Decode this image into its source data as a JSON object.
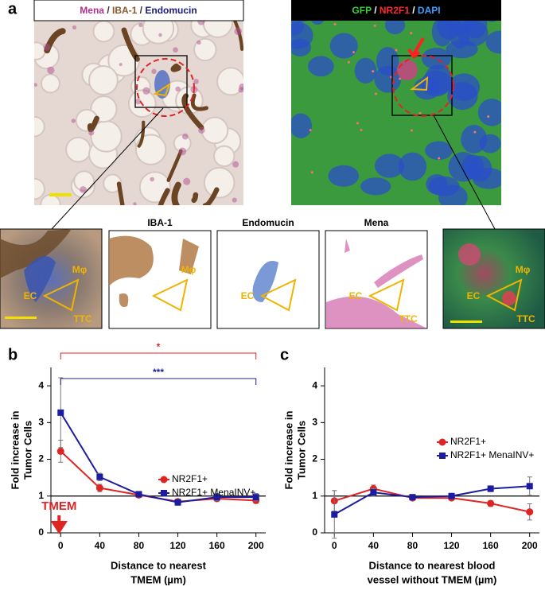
{
  "panel_labels": [
    "a",
    "b",
    "c"
  ],
  "captions": {
    "left": [
      {
        "text": "Mena",
        "color": "#b0308f"
      },
      {
        "text": " / ",
        "color": "#333333"
      },
      {
        "text": "IBA-1",
        "color": "#8b5a2b"
      },
      {
        "text": " / ",
        "color": "#333333"
      },
      {
        "text": "Endomucin",
        "color": "#1a1a7a"
      }
    ],
    "right": [
      {
        "text": "GFP",
        "color": "#3ad13a"
      },
      {
        "text": " / ",
        "color": "#ffffff"
      },
      {
        "text": "NR2F1",
        "color": "#ff2a2a"
      },
      {
        "text": " / ",
        "color": "#ffffff"
      },
      {
        "text": "DAPI",
        "color": "#3aa0ff"
      }
    ]
  },
  "insets": {
    "titles": [
      "IBA-1",
      "Endomucin",
      "Mena"
    ],
    "labels": {
      "ec": "EC",
      "mphi": "Mφ",
      "ttc": "TTC"
    }
  },
  "chart_data": [
    {
      "type": "line",
      "x": [
        0,
        40,
        80,
        120,
        160,
        200
      ],
      "xlim": [
        -10,
        210
      ],
      "xticks": [
        0,
        40,
        80,
        120,
        160,
        200
      ],
      "ylim": [
        0,
        4.5
      ],
      "yticks": [
        0,
        1,
        2,
        3,
        4
      ],
      "reference_line": 1,
      "x_label": [
        "Distance to nearest",
        "TMEM (µm)"
      ],
      "y_label": [
        "Fold increase in",
        "Tumor Cells"
      ],
      "marker_label": "TMEM",
      "significance": [
        {
          "label": "*",
          "color": "#e02424"
        },
        {
          "label": "***",
          "color": "#1c1ca0"
        }
      ],
      "series": [
        {
          "name": "NR2F1+",
          "color": "#e02424",
          "marker": "circle",
          "values": [
            2.22,
            1.22,
            1.03,
            0.85,
            0.93,
            0.88
          ],
          "errors": [
            0.3,
            0.1,
            0.06,
            0.07,
            0.07,
            0.08
          ]
        },
        {
          "name": "NR2F1+ MenaINV+",
          "color": "#1c1ca0",
          "marker": "square",
          "values": [
            3.27,
            1.52,
            1.05,
            0.83,
            0.97,
            0.97
          ],
          "errors": [
            0.95,
            0.1,
            0.07,
            0.08,
            0.1,
            0.1
          ]
        }
      ]
    },
    {
      "type": "line",
      "x": [
        0,
        40,
        80,
        120,
        160,
        200
      ],
      "xlim": [
        -10,
        210
      ],
      "xticks": [
        0,
        40,
        80,
        120,
        160,
        200
      ],
      "ylim": [
        0,
        4.5
      ],
      "yticks": [
        0,
        1,
        2,
        3,
        4
      ],
      "reference_line": 1,
      "x_label": [
        "Distance to nearest blood",
        "vessel without TMEM (µm)"
      ],
      "y_label": [
        "Fold increase in",
        "Tumor Cells"
      ],
      "series": [
        {
          "name": "NR2F1+",
          "color": "#e02424",
          "marker": "circle",
          "values": [
            0.87,
            1.2,
            0.95,
            0.95,
            0.8,
            0.57
          ],
          "errors": [
            0.28,
            0.1,
            0.05,
            0.04,
            0.08,
            0.22
          ]
        },
        {
          "name": "NR2F1+ MenaINV+",
          "color": "#1c1ca0",
          "marker": "square",
          "values": [
            0.5,
            1.1,
            0.97,
            1.0,
            1.2,
            1.27
          ],
          "errors": [
            0.65,
            0.1,
            0.05,
            0.05,
            0.08,
            0.25
          ]
        }
      ]
    }
  ]
}
